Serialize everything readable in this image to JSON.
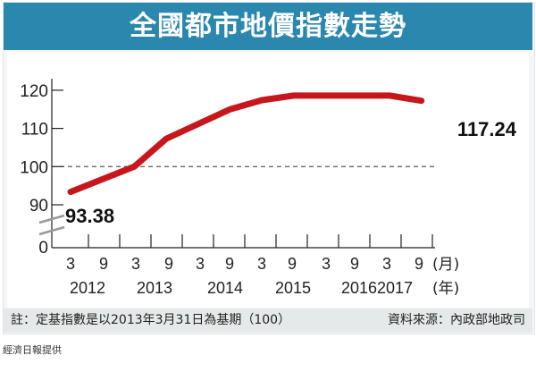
{
  "chart_data": {
    "type": "line",
    "title": "全國都市地價指數走勢",
    "xlabel_month_unit": "(月)",
    "xlabel_year_unit": "(年)",
    "ylabel": "",
    "ylim": [
      0,
      120
    ],
    "y_axis_break": [
      0,
      90
    ],
    "yticks": [
      "120",
      "110",
      "100",
      "90",
      "0"
    ],
    "ytick_values": [
      120,
      110,
      100,
      90
    ],
    "reference_line": 100,
    "xtick_months": [
      "3",
      "9",
      "3",
      "9",
      "3",
      "9",
      "3",
      "9",
      "3",
      "9",
      "3",
      "9"
    ],
    "xtick_years": [
      "2012",
      "2013",
      "2014",
      "2015",
      "2016",
      "2017"
    ],
    "series": [
      {
        "name": "全國都市地價指數",
        "color": "#c8161d",
        "x": [
          "2012-03",
          "2013-03",
          "2013-09",
          "2014-09",
          "2015-03",
          "2015-09",
          "2016-09",
          "2017-03",
          "2017-09"
        ],
        "values": [
          93.38,
          100,
          107.3,
          115.0,
          117.4,
          118.6,
          118.6,
          118.6,
          117.24
        ]
      }
    ],
    "annotations": {
      "start": "93.38",
      "end": "117.24"
    }
  },
  "footer": {
    "note": "註：定基指數是以2013年3月31日為基期（100）",
    "source": "資料來源：內政部地政司"
  },
  "credit": "經濟日報提供"
}
